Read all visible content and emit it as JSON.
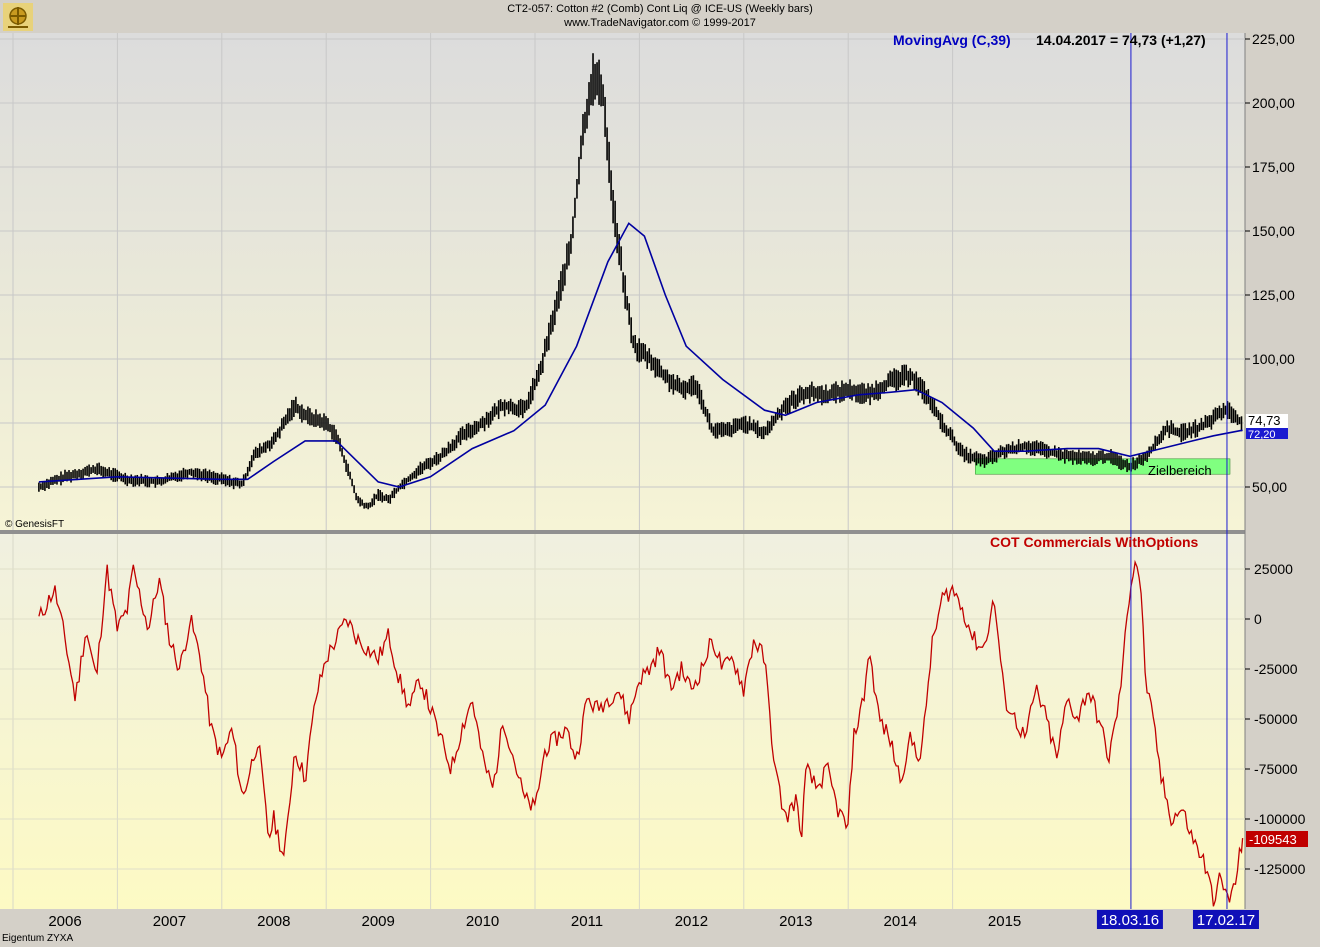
{
  "header": {
    "title": "CT2-057:  Cotton #2 (Comb) Cont Liq @ ICE-US  (Weekly bars)",
    "subtitle": "www.TradeNavigator.com © 1999-2017"
  },
  "colors": {
    "price": "#000000",
    "ma": "#0000a0",
    "cot": "#c00000",
    "target": "#80ff80",
    "marker": "#1a1ad0"
  },
  "price_panel": {
    "indicator_label": "MovingAvg (C,39)",
    "indicator_value": "14.04.2017 = 74,73 (+1,27)",
    "last_price_label": "74,73",
    "ma_value_label": "72,20",
    "target_zone_label": "Zielbereich",
    "copyright": "© GenesisFT",
    "y_ticks": [
      "225,00",
      "200,00",
      "175,00",
      "150,00",
      "125,00",
      "100,00",
      "50,00"
    ]
  },
  "cot_panel": {
    "label": "COT Commercials WithOptions",
    "last_value_label": "-109543",
    "y_ticks": [
      "25000",
      "0",
      "-25000",
      "-50000",
      "-75000",
      "-100000",
      "-125000"
    ]
  },
  "x_axis": {
    "year_labels": [
      "2006",
      "2007",
      "2008",
      "2009",
      "2010",
      "2011",
      "2012",
      "2013",
      "2014",
      "2015"
    ],
    "markers": [
      {
        "label": "18.03.16"
      },
      {
        "label": "17.02.17"
      }
    ]
  },
  "footer": {
    "owner": "Eigentum ZYXA"
  },
  "chart_data": [
    {
      "type": "line",
      "title": "CT2-057: Cotton #2 (Comb) Cont Liq @ ICE-US (Weekly bars)",
      "x_unit": "year",
      "ylim": [
        30,
        225
      ],
      "series": [
        {
          "name": "",
          "points": [
            [
              2005.75,
              50
            ],
            [
              2006.0,
              54
            ],
            [
              2006.3,
              57
            ],
            [
              2006.6,
              53
            ],
            [
              2006.9,
              52
            ],
            [
              2007.2,
              56
            ],
            [
              2007.5,
              53
            ],
            [
              2007.7,
              51
            ],
            [
              2007.8,
              62
            ],
            [
              2008.0,
              68
            ],
            [
              2008.2,
              82
            ],
            [
              2008.3,
              78
            ],
            [
              2008.5,
              75
            ],
            [
              2008.6,
              70
            ],
            [
              2008.7,
              58
            ],
            [
              2008.8,
              45
            ],
            [
              2008.9,
              42
            ],
            [
              2009.0,
              47
            ],
            [
              2009.1,
              45
            ],
            [
              2009.2,
              50
            ],
            [
              2009.4,
              57
            ],
            [
              2009.6,
              62
            ],
            [
              2009.8,
              70
            ],
            [
              2010.0,
              75
            ],
            [
              2010.2,
              82
            ],
            [
              2010.4,
              80
            ],
            [
              2010.55,
              95
            ],
            [
              2010.7,
              120
            ],
            [
              2010.85,
              145
            ],
            [
              2010.95,
              185
            ],
            [
              2011.05,
              210
            ],
            [
              2011.15,
              205
            ],
            [
              2011.25,
              160
            ],
            [
              2011.35,
              130
            ],
            [
              2011.45,
              105
            ],
            [
              2011.6,
              100
            ],
            [
              2011.75,
              93
            ],
            [
              2011.9,
              88
            ],
            [
              2012.05,
              90
            ],
            [
              2012.2,
              72
            ],
            [
              2012.35,
              72
            ],
            [
              2012.5,
              75
            ],
            [
              2012.7,
              71
            ],
            [
              2012.9,
              82
            ],
            [
              2013.1,
              87
            ],
            [
              2013.3,
              86
            ],
            [
              2013.5,
              88
            ],
            [
              2013.7,
              86
            ],
            [
              2013.9,
              91
            ],
            [
              2014.1,
              94
            ],
            [
              2014.25,
              86
            ],
            [
              2014.4,
              75
            ],
            [
              2014.6,
              63
            ],
            [
              2014.8,
              60
            ],
            [
              2015.0,
              64
            ],
            [
              2015.2,
              66
            ],
            [
              2015.4,
              64
            ],
            [
              2015.6,
              62
            ],
            [
              2015.8,
              61
            ],
            [
              2016.0,
              62
            ],
            [
              2016.2,
              58
            ],
            [
              2016.35,
              62
            ],
            [
              2016.45,
              67
            ],
            [
              2016.55,
              73
            ],
            [
              2016.7,
              71
            ],
            [
              2016.85,
              73
            ],
            [
              2016.95,
              75
            ],
            [
              2017.05,
              79
            ],
            [
              2017.15,
              80
            ],
            [
              2017.28,
              74.73
            ]
          ]
        },
        {
          "name": "MovingAvg (C,39)",
          "points": [
            [
              2005.75,
              52
            ],
            [
              2006.5,
              54
            ],
            [
              2007.5,
              53
            ],
            [
              2007.75,
              53
            ],
            [
              2008.0,
              60
            ],
            [
              2008.3,
              68
            ],
            [
              2008.6,
              68
            ],
            [
              2008.8,
              60
            ],
            [
              2009.0,
              52
            ],
            [
              2009.2,
              50
            ],
            [
              2009.5,
              54
            ],
            [
              2009.9,
              65
            ],
            [
              2010.3,
              72
            ],
            [
              2010.6,
              82
            ],
            [
              2010.9,
              105
            ],
            [
              2011.2,
              138
            ],
            [
              2011.4,
              153
            ],
            [
              2011.55,
              148
            ],
            [
              2011.75,
              125
            ],
            [
              2011.95,
              105
            ],
            [
              2012.3,
              92
            ],
            [
              2012.7,
              80
            ],
            [
              2012.9,
              78
            ],
            [
              2013.2,
              83
            ],
            [
              2013.6,
              86
            ],
            [
              2013.9,
              87
            ],
            [
              2014.15,
              88
            ],
            [
              2014.4,
              83
            ],
            [
              2014.7,
              73
            ],
            [
              2014.9,
              64
            ],
            [
              2015.2,
              64
            ],
            [
              2015.6,
              65
            ],
            [
              2015.9,
              65
            ],
            [
              2016.2,
              62
            ],
            [
              2016.5,
              65
            ],
            [
              2016.8,
              68
            ],
            [
              2017.0,
              70
            ],
            [
              2017.28,
              72.2
            ]
          ]
        }
      ],
      "annotations": [
        "Zielbereich"
      ],
      "target_zone": [
        55,
        61
      ],
      "markers": [
        "18.03.16",
        "17.02.17"
      ]
    },
    {
      "type": "line",
      "title": "COT Commercials WithOptions",
      "x_unit": "year",
      "ylim": [
        -145000,
        35000
      ],
      "series": [
        {
          "name": "COT Commercials WithOptions",
          "points": [
            [
              2005.75,
              0
            ],
            [
              2005.9,
              15000
            ],
            [
              2006.0,
              -10000
            ],
            [
              2006.1,
              -40000
            ],
            [
              2006.2,
              -5000
            ],
            [
              2006.3,
              -30000
            ],
            [
              2006.4,
              25000
            ],
            [
              2006.5,
              -5000
            ],
            [
              2006.6,
              5000
            ],
            [
              2006.65,
              25000
            ],
            [
              2006.8,
              -5000
            ],
            [
              2006.9,
              20000
            ],
            [
              2007.0,
              -10000
            ],
            [
              2007.1,
              -25000
            ],
            [
              2007.2,
              0
            ],
            [
              2007.3,
              -20000
            ],
            [
              2007.4,
              -55000
            ],
            [
              2007.5,
              -70000
            ],
            [
              2007.6,
              -55000
            ],
            [
              2007.7,
              -90000
            ],
            [
              2007.75,
              -80000
            ],
            [
              2007.85,
              -60000
            ],
            [
              2007.95,
              -110000
            ],
            [
              2008.0,
              -100000
            ],
            [
              2008.1,
              -120000
            ],
            [
              2008.2,
              -65000
            ],
            [
              2008.3,
              -80000
            ],
            [
              2008.4,
              -40000
            ],
            [
              2008.5,
              -20000
            ],
            [
              2008.6,
              -10000
            ],
            [
              2008.7,
              0
            ],
            [
              2008.8,
              -10000
            ],
            [
              2008.9,
              -15000
            ],
            [
              2009.0,
              -20000
            ],
            [
              2009.1,
              -8000
            ],
            [
              2009.2,
              -30000
            ],
            [
              2009.3,
              -45000
            ],
            [
              2009.4,
              -30000
            ],
            [
              2009.5,
              -45000
            ],
            [
              2009.6,
              -60000
            ],
            [
              2009.7,
              -75000
            ],
            [
              2009.8,
              -55000
            ],
            [
              2009.9,
              -40000
            ],
            [
              2010.0,
              -70000
            ],
            [
              2010.1,
              -85000
            ],
            [
              2010.2,
              -50000
            ],
            [
              2010.3,
              -70000
            ],
            [
              2010.4,
              -90000
            ],
            [
              2010.5,
              -95000
            ],
            [
              2010.6,
              -65000
            ],
            [
              2010.7,
              -60000
            ],
            [
              2010.8,
              -55000
            ],
            [
              2010.9,
              -70000
            ],
            [
              2011.0,
              -40000
            ],
            [
              2011.1,
              -45000
            ],
            [
              2011.2,
              -40000
            ],
            [
              2011.3,
              -35000
            ],
            [
              2011.4,
              -50000
            ],
            [
              2011.5,
              -30000
            ],
            [
              2011.6,
              -25000
            ],
            [
              2011.7,
              -15000
            ],
            [
              2011.8,
              -35000
            ],
            [
              2011.9,
              -25000
            ],
            [
              2012.0,
              -35000
            ],
            [
              2012.1,
              -25000
            ],
            [
              2012.2,
              -10000
            ],
            [
              2012.3,
              -25000
            ],
            [
              2012.4,
              -20000
            ],
            [
              2012.5,
              -35000
            ],
            [
              2012.6,
              -10000
            ],
            [
              2012.7,
              -20000
            ],
            [
              2012.8,
              -75000
            ],
            [
              2012.9,
              -100000
            ],
            [
              2013.0,
              -90000
            ],
            [
              2013.05,
              -110000
            ],
            [
              2013.1,
              -75000
            ],
            [
              2013.2,
              -85000
            ],
            [
              2013.3,
              -75000
            ],
            [
              2013.4,
              -95000
            ],
            [
              2013.5,
              -105000
            ],
            [
              2013.55,
              -60000
            ],
            [
              2013.65,
              -40000
            ],
            [
              2013.7,
              -15000
            ],
            [
              2013.8,
              -50000
            ],
            [
              2013.9,
              -60000
            ],
            [
              2014.0,
              -80000
            ],
            [
              2014.1,
              -60000
            ],
            [
              2014.2,
              -70000
            ],
            [
              2014.3,
              -15000
            ],
            [
              2014.4,
              10000
            ],
            [
              2014.5,
              15000
            ],
            [
              2014.6,
              5000
            ],
            [
              2014.7,
              -10000
            ],
            [
              2014.8,
              -15000
            ],
            [
              2014.9,
              10000
            ],
            [
              2015.0,
              -40000
            ],
            [
              2015.1,
              -50000
            ],
            [
              2015.2,
              -60000
            ],
            [
              2015.3,
              -35000
            ],
            [
              2015.4,
              -50000
            ],
            [
              2015.5,
              -70000
            ],
            [
              2015.6,
              -40000
            ],
            [
              2015.7,
              -50000
            ],
            [
              2015.8,
              -35000
            ],
            [
              2015.9,
              -50000
            ],
            [
              2016.0,
              -70000
            ],
            [
              2016.1,
              -40000
            ],
            [
              2016.2,
              15000
            ],
            [
              2016.25,
              30000
            ],
            [
              2016.3,
              20000
            ],
            [
              2016.35,
              -30000
            ],
            [
              2016.45,
              -60000
            ],
            [
              2016.5,
              -80000
            ],
            [
              2016.6,
              -100000
            ],
            [
              2016.7,
              -95000
            ],
            [
              2016.8,
              -110000
            ],
            [
              2016.9,
              -120000
            ],
            [
              2016.95,
              -130000
            ],
            [
              2017.0,
              -140000
            ],
            [
              2017.05,
              -130000
            ],
            [
              2017.15,
              -140000
            ],
            [
              2017.2,
              -135000
            ],
            [
              2017.28,
              -109543
            ]
          ]
        }
      ]
    }
  ]
}
